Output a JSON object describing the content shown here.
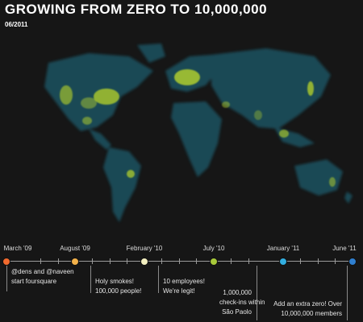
{
  "header": {
    "title": "GROWING FROM ZERO TO 10,000,000",
    "date": "06/2011"
  },
  "colors": {
    "background": "#161616",
    "density_low": "#1f7f9a",
    "density_high": "#c7dc2b"
  },
  "timeline": {
    "milestones": [
      {
        "date": "March '09",
        "color": "#f26a2e",
        "note_line1": "@dens and @naveen",
        "note_line2": "start foursquare",
        "note_line3": ""
      },
      {
        "date": "August '09",
        "color": "#f4b24a",
        "note_line1": "Holy smokes!",
        "note_line2": "100,000 people!",
        "note_line3": ""
      },
      {
        "date": "February '10",
        "color": "#f3efc0",
        "note_line1": "10 employees!",
        "note_line2": "We're legit!",
        "note_line3": ""
      },
      {
        "date": "July '10",
        "color": "#a8c93a",
        "note_line1": "1,000,000",
        "note_line2": "check-ins within",
        "note_line3": "São Paolo"
      },
      {
        "date": "January '11",
        "color": "#32aee0",
        "note_line1": "Add an extra zero! Over",
        "note_line2": "10,000,000 members",
        "note_line3": ""
      },
      {
        "date": "June '11",
        "color": "#2f7fd0",
        "note_line1": "",
        "note_line2": "",
        "note_line3": ""
      }
    ]
  }
}
